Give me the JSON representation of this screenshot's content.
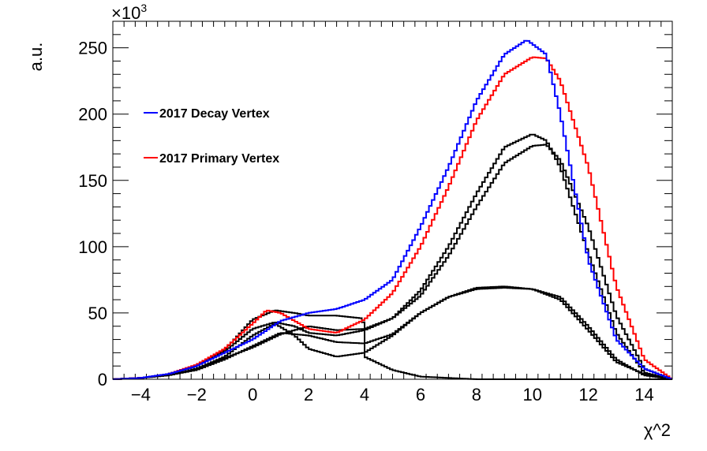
{
  "chart_data": {
    "type": "line",
    "style": "step-histogram",
    "title": "",
    "xlabel": "χ^2",
    "ylabel": "a.u.",
    "y_scale_label": "×10",
    "y_scale_exponent": "3",
    "xlim": [
      -5,
      15
    ],
    "ylim": [
      0,
      270
    ],
    "x_ticks": [
      -4,
      -2,
      0,
      2,
      4,
      6,
      8,
      10,
      12,
      14
    ],
    "y_ticks": [
      0,
      50,
      100,
      150,
      200,
      250
    ],
    "legend_position": "top-left",
    "legend": [
      {
        "label": "2017 Decay Vertex",
        "color": "#0000ff"
      },
      {
        "label": "2017 Primary Vertex",
        "color": "#ff0000"
      }
    ],
    "series": [
      {
        "name": "2017 Decay Vertex",
        "color": "#0000ff",
        "x": [
          -5,
          -4,
          -3,
          -2,
          -1,
          0,
          1,
          2,
          3,
          4,
          5,
          6,
          7,
          8,
          9,
          9.8,
          10.5,
          11,
          12,
          13,
          14,
          15
        ],
        "y": [
          0,
          1,
          4,
          10,
          20,
          30,
          44,
          50,
          53,
          60,
          75,
          115,
          160,
          210,
          245,
          256,
          245,
          200,
          90,
          30,
          8,
          0
        ]
      },
      {
        "name": "2017 Primary Vertex",
        "color": "#ff0000",
        "x": [
          -5,
          -4,
          -3,
          -2,
          -1,
          0,
          0.5,
          1,
          2,
          3,
          4,
          5,
          6,
          7,
          8,
          9,
          10,
          10.5,
          11,
          12,
          13,
          14,
          15
        ],
        "y": [
          0,
          1,
          4,
          11,
          23,
          42,
          52,
          50,
          38,
          35,
          45,
          65,
          100,
          145,
          195,
          230,
          243,
          242,
          225,
          160,
          70,
          15,
          0
        ]
      },
      {
        "name": "black-1",
        "color": "#000000",
        "x": [
          -5,
          -4,
          -3,
          -2,
          -1,
          0,
          0.8,
          1.5,
          2,
          3,
          4,
          5,
          6,
          7,
          8,
          9,
          10,
          10.5,
          11,
          12,
          13,
          14,
          15
        ],
        "y": [
          0,
          1,
          4,
          10,
          21,
          38,
          43,
          40,
          35,
          33,
          37,
          46,
          67,
          100,
          140,
          175,
          185,
          180,
          160,
          95,
          35,
          5,
          0
        ]
      },
      {
        "name": "black-2",
        "color": "#000000",
        "x": [
          -5,
          -4,
          -3,
          -2,
          -1,
          0,
          1,
          2,
          3,
          4,
          5,
          6,
          7,
          8,
          9,
          10,
          10.5,
          11,
          12,
          13,
          14,
          15
        ],
        "y": [
          0,
          1,
          3,
          8,
          16,
          24,
          34,
          40,
          37,
          38,
          46,
          63,
          93,
          130,
          163,
          176,
          177,
          165,
          115,
          48,
          8,
          0
        ]
      },
      {
        "name": "black-3",
        "color": "#000000",
        "x": [
          -5,
          -4,
          -3,
          -2,
          -1,
          0,
          0.8,
          1.5,
          2,
          3,
          3.9,
          3.95,
          4,
          5,
          6,
          7,
          8,
          9,
          10,
          11,
          12,
          13,
          14,
          15
        ],
        "y": [
          0,
          1,
          4,
          10,
          22,
          45,
          52,
          50,
          48,
          48,
          46,
          43,
          17,
          7,
          2,
          1,
          0,
          0,
          0,
          0,
          0,
          0,
          0,
          0
        ]
      },
      {
        "name": "black-4",
        "color": "#000000",
        "x": [
          -5,
          -4,
          -3,
          -2,
          -1,
          0,
          0.8,
          1.5,
          2,
          3,
          4,
          5,
          6,
          7,
          8,
          9,
          10,
          11,
          12,
          13,
          14,
          15
        ],
        "y": [
          0,
          1,
          3,
          8,
          17,
          33,
          42,
          33,
          23,
          17,
          20,
          33,
          50,
          62,
          68,
          69,
          68,
          60,
          37,
          13,
          4,
          0
        ]
      },
      {
        "name": "black-5",
        "color": "#000000",
        "x": [
          -5,
          -4,
          -3,
          -2,
          -1,
          0,
          1,
          2,
          3,
          4,
          5,
          6,
          7,
          8,
          9,
          10,
          11,
          12,
          13,
          14,
          15
        ],
        "y": [
          0,
          1,
          3,
          7,
          15,
          25,
          35,
          33,
          28,
          27,
          34,
          50,
          62,
          69,
          70,
          68,
          62,
          40,
          15,
          3,
          0
        ]
      }
    ]
  }
}
